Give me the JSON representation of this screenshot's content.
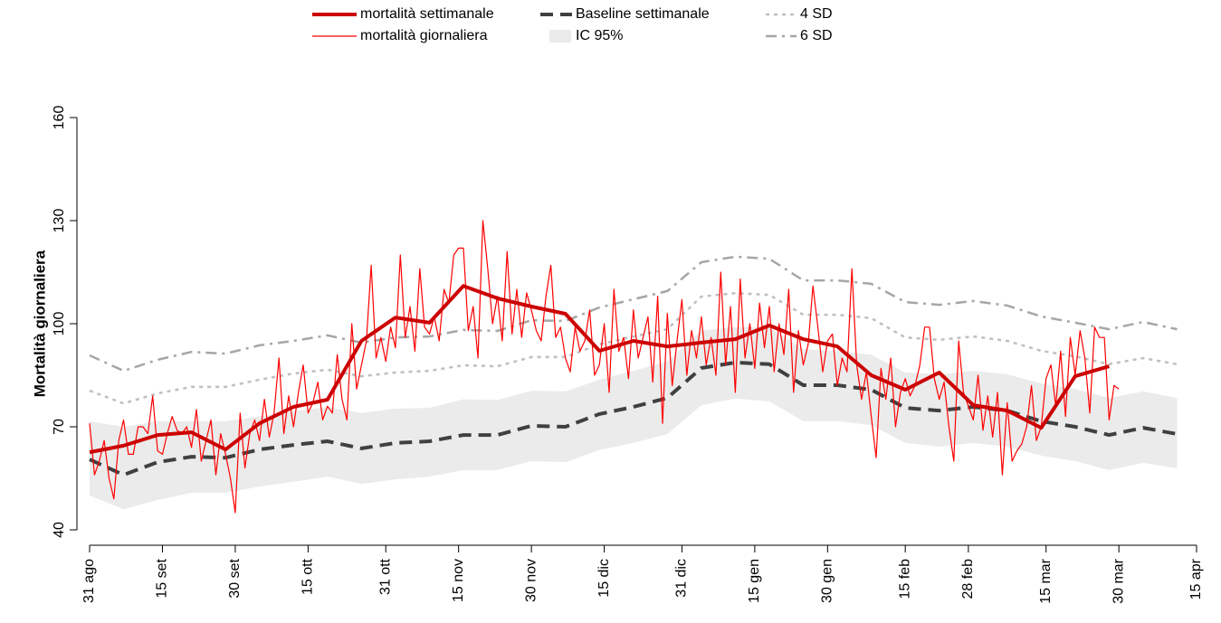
{
  "chart_data": {
    "type": "line",
    "y_label": "Mortalità giornaliera",
    "xlim": [
      0,
      228
    ],
    "ylim": [
      40,
      160
    ],
    "yticks": [
      40,
      70,
      100,
      130,
      160
    ],
    "xticks": [
      {
        "value": 0,
        "label": "31 ago"
      },
      {
        "value": 15,
        "label": "15 set"
      },
      {
        "value": 30,
        "label": "30 set"
      },
      {
        "value": 45,
        "label": "15 ott"
      },
      {
        "value": 61,
        "label": "31 ott"
      },
      {
        "value": 76,
        "label": "15 nov"
      },
      {
        "value": 91,
        "label": "30 nov"
      },
      {
        "value": 106,
        "label": "15 dic"
      },
      {
        "value": 122,
        "label": "31 dic"
      },
      {
        "value": 137,
        "label": "15 gen"
      },
      {
        "value": 152,
        "label": "30 gen"
      },
      {
        "value": 168,
        "label": "15 feb"
      },
      {
        "value": 181,
        "label": "28 feb"
      },
      {
        "value": 197,
        "label": "15 mar"
      },
      {
        "value": 212,
        "label": "30 mar"
      },
      {
        "value": 228,
        "label": "15 apr"
      }
    ],
    "series": [
      {
        "name": "mortalità settimanale",
        "color": "#cc0000",
        "style": "thick",
        "x": [
          0,
          7,
          14,
          21,
          28,
          35,
          42,
          49,
          56,
          63,
          70,
          77,
          84,
          91,
          98,
          105,
          112,
          119,
          126,
          133,
          140,
          147,
          154,
          161,
          168,
          175,
          182,
          189,
          196,
          203,
          210
        ],
        "values": [
          62.6,
          64.5,
          67.6,
          68.4,
          63.4,
          71,
          75.8,
          77.9,
          95,
          101.8,
          100.3,
          111,
          107.4,
          105,
          102.9,
          92.1,
          95,
          93.4,
          94.5,
          95.5,
          99.5,
          95.5,
          93.4,
          85,
          80.8,
          85.8,
          76.3,
          74.7,
          69.7,
          84.7,
          87.6
        ]
      },
      {
        "name": "mortalità giornaliera",
        "color": "#ff0000",
        "style": "thin",
        "x": [
          0,
          1,
          2,
          3,
          4,
          5,
          6,
          7,
          8,
          9,
          10,
          11,
          12,
          13,
          14,
          15,
          16,
          17,
          18,
          19,
          20,
          21,
          22,
          23,
          24,
          25,
          26,
          27,
          28,
          29,
          30,
          31,
          32,
          33,
          34,
          35,
          36,
          37,
          38,
          39,
          40,
          41,
          42,
          43,
          44,
          45,
          46,
          47,
          48,
          49,
          50,
          51,
          52,
          53,
          54,
          55,
          56,
          57,
          58,
          59,
          60,
          61,
          62,
          63,
          64,
          65,
          66,
          67,
          68,
          69,
          70,
          71,
          72,
          73,
          74,
          75,
          76,
          77,
          78,
          79,
          80,
          81,
          82,
          83,
          84,
          85,
          86,
          87,
          88,
          89,
          90,
          91,
          92,
          93,
          94,
          95,
          96,
          97,
          98,
          99,
          100,
          101,
          102,
          103,
          104,
          105,
          106,
          107,
          108,
          109,
          110,
          111,
          112,
          113,
          114,
          115,
          116,
          117,
          118,
          119,
          120,
          121,
          122,
          123,
          124,
          125,
          126,
          127,
          128,
          129,
          130,
          131,
          132,
          133,
          134,
          135,
          136,
          137,
          138,
          139,
          140,
          141,
          142,
          143,
          144,
          145,
          146,
          147,
          148,
          149,
          150,
          151,
          152,
          153,
          154,
          155,
          156,
          157,
          158,
          159,
          160,
          161,
          162,
          163,
          164,
          165,
          166,
          167,
          168,
          169,
          170,
          171,
          172,
          173,
          174,
          175,
          176,
          177,
          178,
          179,
          180,
          181,
          182,
          183,
          184,
          185,
          186,
          187,
          188,
          189,
          190,
          191,
          192,
          193,
          194,
          195,
          196,
          197,
          198,
          199,
          200,
          201,
          202,
          203,
          204,
          205,
          206,
          207,
          208,
          209,
          210,
          211,
          212
        ],
        "values": [
          71,
          56,
          60,
          66,
          55,
          49,
          66,
          72,
          62,
          62,
          70,
          70,
          68,
          79,
          63,
          62,
          68,
          73,
          69,
          68,
          70,
          64,
          75,
          60,
          66,
          72,
          56,
          68,
          62,
          55,
          45,
          74,
          58,
          68,
          72,
          66,
          78,
          67,
          74,
          90,
          68,
          79,
          70,
          80,
          88,
          74,
          77,
          83,
          72,
          76,
          74,
          91,
          78,
          72,
          100,
          81,
          88,
          95,
          117,
          90,
          96,
          89,
          99,
          93,
          120,
          96,
          105,
          92,
          116,
          99,
          97,
          102,
          95,
          110,
          106,
          120,
          122,
          122,
          98,
          105,
          90,
          130,
          116,
          100,
          108,
          95,
          121,
          97,
          110,
          96,
          109,
          104,
          98,
          95,
          108,
          117,
          96,
          99,
          90,
          86,
          99,
          92,
          95,
          104,
          85,
          88,
          100,
          80,
          110,
          92,
          96,
          84,
          104,
          90,
          96,
          102,
          83,
          108,
          71,
          103,
          82,
          95,
          107,
          85,
          98,
          90,
          102,
          88,
          96,
          85,
          115,
          88,
          105,
          80,
          113,
          90,
          100,
          87,
          106,
          93,
          105,
          86,
          100,
          91,
          110,
          80,
          98,
          88,
          94,
          111,
          99,
          86,
          95,
          97,
          82,
          90,
          86,
          116,
          88,
          78,
          86,
          73,
          61,
          87,
          78,
          90,
          70,
          80,
          84,
          79,
          82,
          88,
          99,
          99,
          84,
          78,
          83,
          70,
          60,
          95,
          80,
          76,
          72,
          85,
          69,
          79,
          67,
          80,
          56,
          77,
          60,
          63,
          65,
          70,
          82,
          66,
          70,
          84,
          88,
          76,
          92,
          73,
          96,
          85,
          98,
          90,
          74,
          99,
          96,
          96,
          72,
          82,
          81
        ]
      },
      {
        "name": "Baseline settimanale",
        "color": "#404040",
        "style": "dashed",
        "x": [
          0,
          7,
          14,
          21,
          28,
          35,
          42,
          49,
          56,
          63,
          70,
          77,
          84,
          91,
          98,
          105,
          112,
          119,
          126,
          133,
          140,
          147,
          154,
          161,
          168,
          175,
          182,
          189,
          196,
          203,
          210,
          217,
          224
        ],
        "values": [
          60.5,
          56,
          59.7,
          61.3,
          61,
          63.4,
          64.7,
          65.8,
          63.7,
          65.3,
          65.8,
          67.6,
          67.6,
          70.3,
          70,
          73.7,
          75.8,
          78.4,
          87.1,
          88.7,
          88.2,
          82.1,
          82.1,
          80.8,
          75.5,
          74.7,
          75.8,
          74.7,
          71.6,
          70,
          67.6,
          69.7,
          67.9
        ]
      },
      {
        "name": "IC 95%",
        "color": "#ebebeb",
        "style": "band",
        "x": [
          0,
          7,
          14,
          21,
          28,
          35,
          42,
          49,
          56,
          63,
          70,
          77,
          84,
          91,
          98,
          105,
          112,
          119,
          126,
          133,
          140,
          147,
          154,
          161,
          168,
          175,
          182,
          189,
          196,
          203,
          210,
          217,
          224
        ],
        "lower": [
          50,
          46,
          48.7,
          50.8,
          50.8,
          52.6,
          54,
          55.5,
          53.4,
          54.7,
          55.5,
          57.4,
          57.4,
          60,
          59.7,
          63.2,
          65.3,
          67.9,
          76.3,
          78.2,
          77.4,
          71.6,
          71.6,
          70.5,
          65.3,
          64.2,
          65.3,
          64.2,
          61.6,
          60,
          57.4,
          59.5,
          57.9
        ],
        "upper": [
          71.6,
          70,
          71.6,
          71.6,
          71.6,
          73,
          74.5,
          75.8,
          74,
          75.3,
          75.5,
          78,
          77.8,
          80.5,
          80.3,
          83.7,
          86.3,
          89,
          98,
          99,
          98.9,
          92.6,
          92,
          91,
          85.8,
          85.3,
          86.3,
          85.3,
          82.6,
          81,
          78.4,
          80.3,
          78.4
        ]
      },
      {
        "name": "4 SD",
        "color": "#bfbfbf",
        "style": "dotted",
        "x": [
          0,
          7,
          14,
          21,
          28,
          35,
          42,
          49,
          56,
          63,
          70,
          77,
          84,
          91,
          98,
          105,
          112,
          119,
          126,
          133,
          140,
          147,
          154,
          161,
          168,
          175,
          182,
          189,
          196,
          203,
          210,
          217,
          224
        ],
        "values": [
          80.5,
          76.8,
          79.7,
          81.6,
          81.6,
          83.7,
          85.5,
          86.6,
          84.7,
          85.8,
          86.3,
          87.9,
          87.6,
          90.3,
          90.3,
          94,
          96.3,
          98.4,
          107.9,
          108.9,
          108.4,
          102.6,
          102.6,
          101.6,
          96,
          95.3,
          96.3,
          95,
          92.1,
          90.5,
          88.2,
          90,
          88.2
        ]
      },
      {
        "name": "6 SD",
        "color": "#a6a6a6",
        "style": "dashdot",
        "x": [
          0,
          7,
          14,
          21,
          28,
          35,
          42,
          49,
          56,
          63,
          70,
          77,
          84,
          91,
          98,
          105,
          112,
          119,
          126,
          133,
          140,
          147,
          154,
          161,
          168,
          175,
          182,
          189,
          196,
          203,
          210,
          217,
          224
        ],
        "values": [
          90.8,
          86.3,
          89.5,
          91.8,
          91.3,
          93.7,
          95,
          96.6,
          94.5,
          96,
          96.3,
          98.2,
          97.9,
          101,
          100.8,
          104.7,
          107.1,
          109.5,
          117.9,
          119.5,
          118.9,
          112.6,
          112.6,
          111.6,
          106.3,
          105.5,
          106.6,
          105.3,
          102.1,
          100.3,
          98.4,
          100.5,
          98.4
        ]
      }
    ]
  }
}
